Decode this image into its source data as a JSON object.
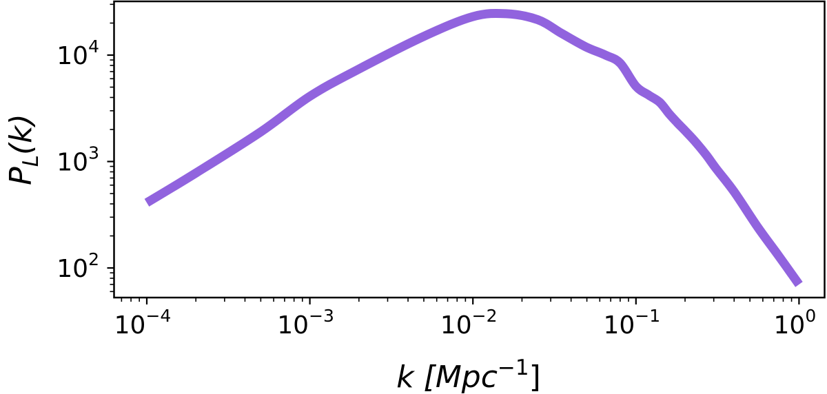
{
  "chart_data": {
    "type": "line",
    "title": "",
    "xlabel": "k [Mpc^-1]",
    "ylabel": "P_L(k)",
    "xscale": "log",
    "yscale": "log",
    "xlim": [
      7e-05,
      1.6
    ],
    "ylim": [
      60,
      30000
    ],
    "grid": false,
    "legend": null,
    "x_ticks": [
      {
        "base": "10",
        "exp": "−4",
        "value": 0.0001
      },
      {
        "base": "10",
        "exp": "−3",
        "value": 0.001
      },
      {
        "base": "10",
        "exp": "−2",
        "value": 0.01
      },
      {
        "base": "10",
        "exp": "−1",
        "value": 0.1
      },
      {
        "base": "10",
        "exp": "0",
        "value": 1
      }
    ],
    "y_ticks": [
      {
        "base": "10",
        "exp": "2",
        "value": 100
      },
      {
        "base": "10",
        "exp": "3",
        "value": 1000
      },
      {
        "base": "10",
        "exp": "4",
        "value": 10000
      }
    ],
    "series": [
      {
        "name": "P_L(k)",
        "color": "#9163de",
        "x": [
          0.0001,
          0.0002,
          0.0005,
          0.001,
          0.002,
          0.005,
          0.01,
          0.016,
          0.025,
          0.035,
          0.049,
          0.065,
          0.08,
          0.1,
          0.12,
          0.14,
          0.16,
          0.18,
          0.2,
          0.23,
          0.27,
          0.31,
          0.4,
          0.56,
          0.75,
          1.0
        ],
        "y": [
          410,
          780,
          1900,
          4100,
          7400,
          15000,
          23000,
          24500,
          21500,
          16000,
          12000,
          10000,
          8400,
          5100,
          4200,
          3600,
          2800,
          2300,
          1950,
          1550,
          1150,
          860,
          520,
          240,
          130,
          70
        ]
      }
    ]
  },
  "labels": {
    "xlabel_main": "k [Mpc",
    "xlabel_sup": "−1",
    "xlabel_close": "]",
    "ylabel_main": "P",
    "ylabel_sub": "L",
    "ylabel_rest": "(k)"
  }
}
